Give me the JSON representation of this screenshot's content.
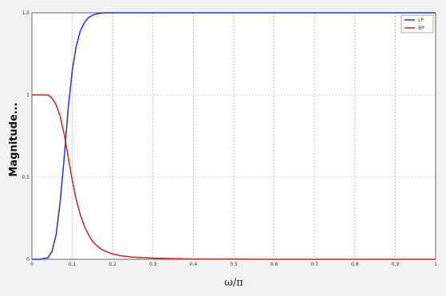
{
  "chart_data": {
    "type": "line",
    "title": "",
    "xlabel": "ω/π",
    "ylabel": "Magnitude...",
    "xlim": [
      0,
      1
    ],
    "ylim": [
      0,
      1.5
    ],
    "xticks": [
      "0",
      "0.1",
      "0.2",
      "0.3",
      "0.4",
      "0.5",
      "0.6",
      "0.7",
      "0.8",
      "0.9",
      "1"
    ],
    "yticks": [
      "0",
      "0.5",
      "1",
      "1.5"
    ],
    "grid": true,
    "legend_position": "top-right",
    "x": [
      0,
      0.02,
      0.04,
      0.05,
      0.06,
      0.07,
      0.08,
      0.09,
      0.1,
      0.11,
      0.12,
      0.13,
      0.14,
      0.15,
      0.16,
      0.17,
      0.18,
      0.2,
      0.22,
      0.25,
      0.3,
      0.35,
      0.4,
      0.5,
      0.6,
      0.7,
      0.8,
      0.9,
      1.0
    ],
    "series": [
      {
        "name": "LP",
        "color": "#2233cc",
        "values": [
          0,
          0,
          0.01,
          0.05,
          0.15,
          0.35,
          0.62,
          0.92,
          1.15,
          1.3,
          1.39,
          1.44,
          1.47,
          1.485,
          1.493,
          1.497,
          1.5,
          1.5,
          1.5,
          1.5,
          1.5,
          1.5,
          1.5,
          1.5,
          1.5,
          1.5,
          1.5,
          1.5,
          1.5
        ]
      },
      {
        "name": "BP",
        "color": "#cc2222",
        "values": [
          1.0,
          1.0,
          1.0,
          0.98,
          0.94,
          0.87,
          0.76,
          0.62,
          0.48,
          0.36,
          0.27,
          0.2,
          0.15,
          0.11,
          0.085,
          0.065,
          0.05,
          0.032,
          0.022,
          0.013,
          0.007,
          0.004,
          0.002,
          0.001,
          0,
          0,
          0,
          0,
          0
        ]
      }
    ]
  }
}
